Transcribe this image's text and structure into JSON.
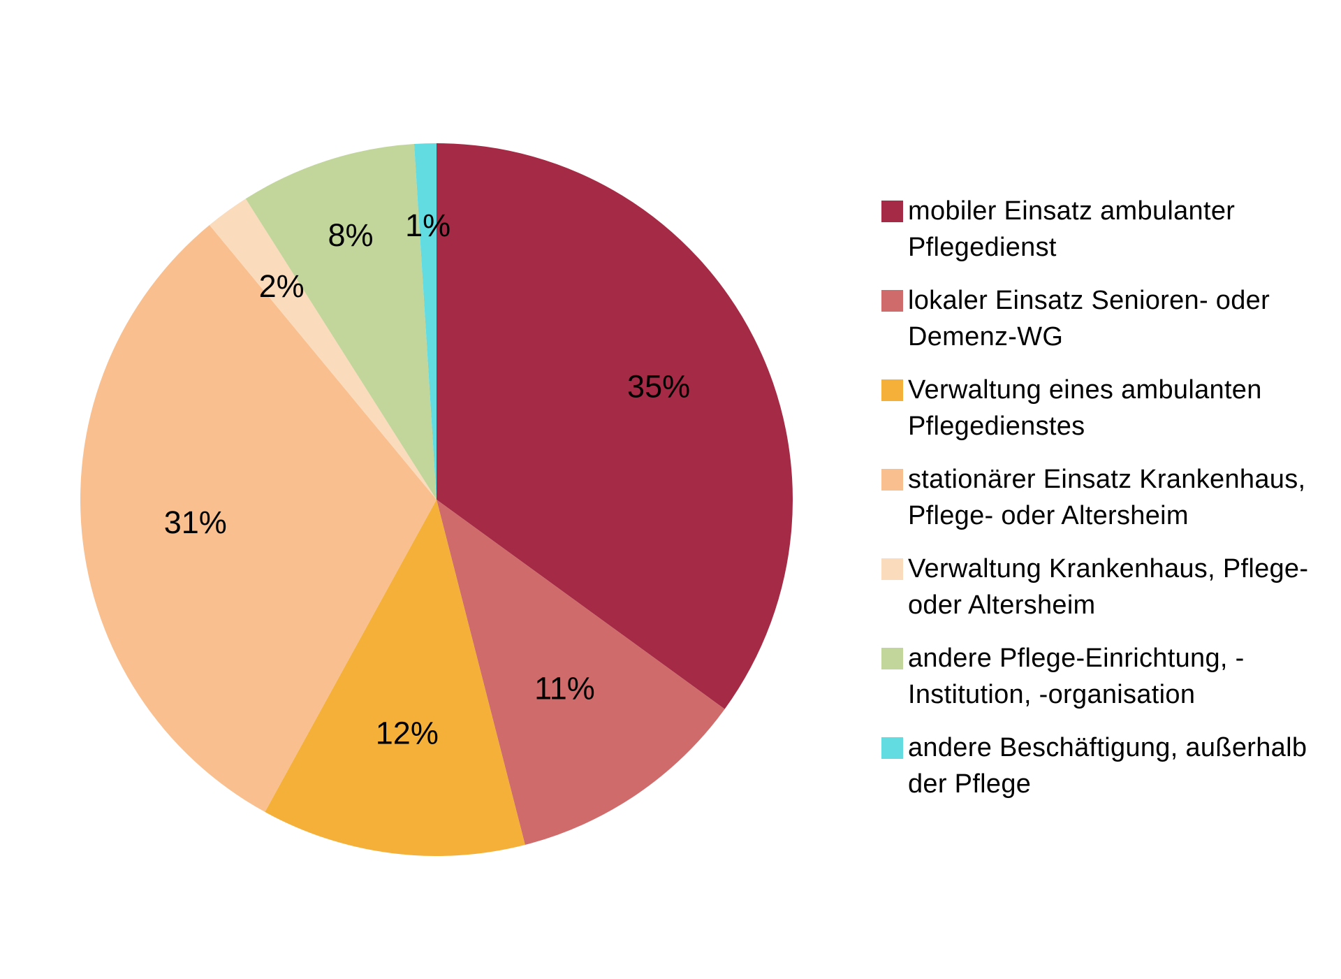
{
  "chart_data": {
    "type": "pie",
    "title": "",
    "unit": "%",
    "background": "#FFFFFF",
    "label_color": "#000000",
    "start_angle_deg": 0,
    "direction": "clockwise",
    "legend_position": "right",
    "slices": [
      {
        "label": "mobiler Einsatz ambulanter Pflegedienst",
        "value": 35,
        "display": "35%",
        "color": "#A52A45",
        "label_radius": 0.7
      },
      {
        "label": "lokaler Einsatz Senioren- oder Demenz-WG",
        "value": 11,
        "display": "11%",
        "color": "#CF6B6B",
        "label_radius": 0.64
      },
      {
        "label": "Verwaltung eines ambulanten Pflegedienstes",
        "value": 12,
        "display": "12%",
        "color": "#F5B039",
        "label_radius": 0.66
      },
      {
        "label": "stationärer Einsatz Krankenhaus, Pflege- oder Altersheim",
        "value": 31,
        "display": "31%",
        "color": "#F9BF8E",
        "label_radius": 0.68
      },
      {
        "label": "Verwaltung Krankenhaus, Pflege- oder Altersheim",
        "value": 2,
        "display": "2%",
        "color": "#FADCBC",
        "label_radius": 0.74
      },
      {
        "label": "andere Pflege-Einrichtung, -Institution, -organisation",
        "value": 8,
        "display": "8%",
        "color": "#C2D69B",
        "label_radius": 0.78
      },
      {
        "label": "andere Beschäftigung, außerhalb der Pflege",
        "value": 1,
        "display": "1%",
        "color": "#62DCE1",
        "label_radius": 0.77
      }
    ]
  }
}
